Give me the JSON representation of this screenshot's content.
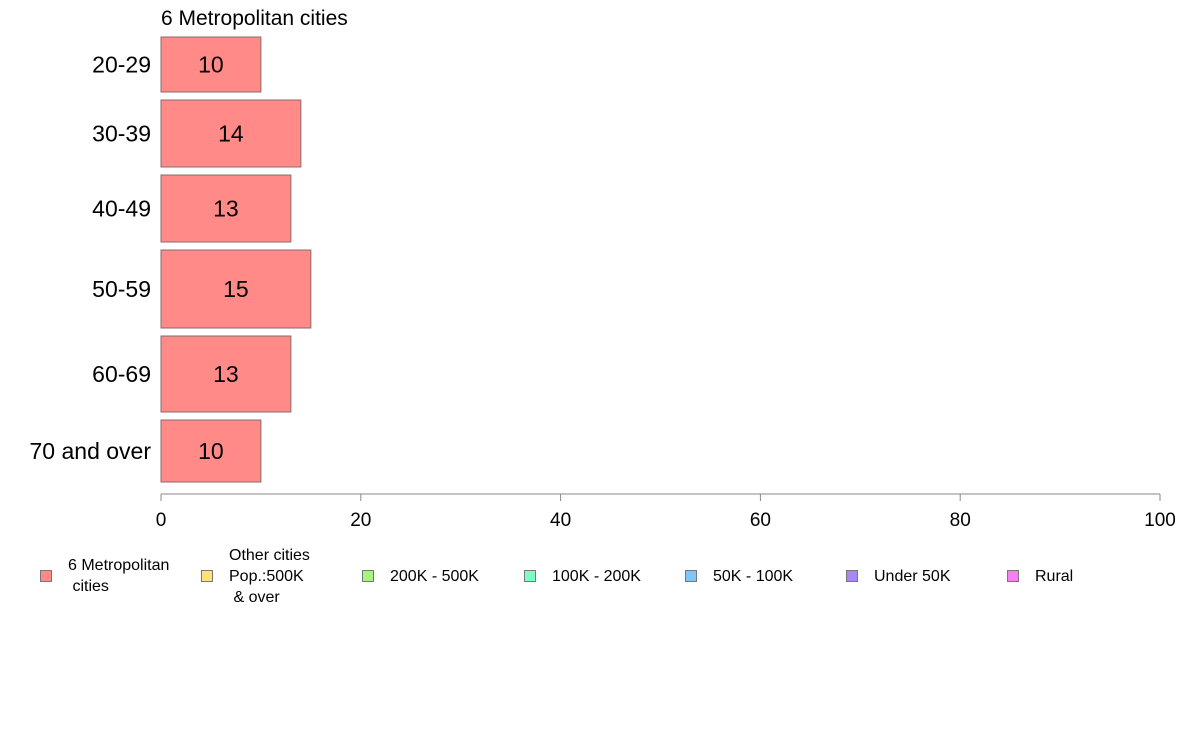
{
  "chart_data": {
    "type": "bar",
    "orientation": "horizontal",
    "title": "6 Metropolitan cities",
    "categories": [
      "20-29",
      "30-39",
      "40-49",
      "50-59",
      "60-69",
      "70 and over"
    ],
    "values": [
      10,
      14,
      13,
      15,
      13,
      10
    ],
    "xlim": [
      0,
      100
    ],
    "xticks": [
      "0",
      "20",
      "40",
      "60",
      "80",
      "100"
    ],
    "xlabel": "",
    "ylabel": "",
    "grid": false,
    "bar_color": "#ff8a87",
    "legend_position": "bottom",
    "legend": [
      {
        "label": "6 Metropolitan\n cities",
        "color": "#ff8a87"
      },
      {
        "label": "Other cities\nPop.:500K\n & over",
        "color": "#ffe17a"
      },
      {
        "label": "200K - 500K",
        "color": "#a6f57e"
      },
      {
        "label": "100K - 200K",
        "color": "#7dffc4"
      },
      {
        "label": "50K - 100K",
        "color": "#7fc6fb"
      },
      {
        "label": "Under 50K",
        "color": "#a688f6"
      },
      {
        "label": "Rural",
        "color": "#f67ef0"
      }
    ]
  }
}
